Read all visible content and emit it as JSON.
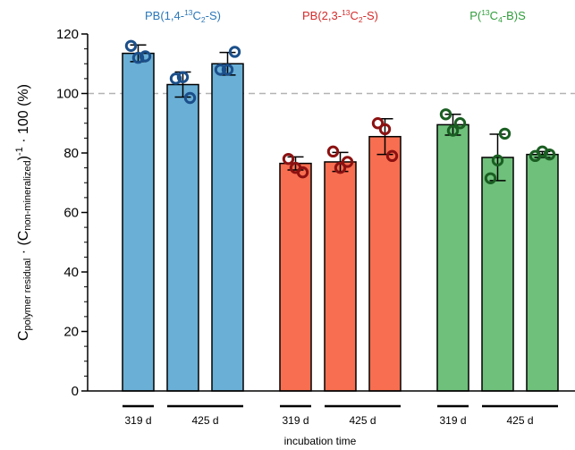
{
  "chart_data": {
    "type": "bar",
    "ylabel": {
      "prefix": "C",
      "sub1": "polymer residual",
      "middle": " · (C",
      "sub2": "non-mineralized",
      "close": ")",
      "sup": "-1",
      "suffix": " · 100 (%)"
    },
    "xlabel": "incubation time",
    "ylim": [
      0,
      120
    ],
    "yticks": [
      0,
      20,
      40,
      60,
      80,
      100,
      120
    ],
    "yticks_minor_step": 5,
    "reference_line": 100,
    "groups": [
      {
        "title": {
          "pre": "PB(1,4-",
          "sup": "13",
          "mid": "C",
          "sub": "2",
          "post": "-S)"
        },
        "color": "#2a77b8",
        "bar_color": "#6aafd6",
        "marker_color": "#1b4f8a",
        "bars": [
          {
            "time": "319 d",
            "mean": 113.5,
            "sd": 2.8,
            "points": [
              116,
              112,
              112.5
            ]
          },
          {
            "time": "425 d",
            "mean": 103,
            "sd": 4.2,
            "points": [
              105,
              105.5,
              98.5
            ]
          },
          {
            "time": "425 d",
            "mean": 110,
            "sd": 3.8,
            "points": [
              108,
              108,
              114
            ]
          }
        ],
        "time_labels": [
          "319 d",
          "425 d"
        ]
      },
      {
        "title": {
          "pre": "PB(2,3-",
          "sup": "13",
          "mid": "C",
          "sub": "2",
          "post": "-S)"
        },
        "color": "#d42a2a",
        "bar_color": "#f76e50",
        "marker_color": "#8c1111",
        "bars": [
          {
            "time": "319 d",
            "mean": 76.5,
            "sd": 2.2,
            "points": [
              78,
              75,
              73.5
            ]
          },
          {
            "time": "425 d",
            "mean": 77,
            "sd": 3.2,
            "points": [
              80.5,
              75,
              77
            ]
          },
          {
            "time": "425 d",
            "mean": 85.5,
            "sd": 6,
            "points": [
              90,
              88,
              79
            ]
          }
        ],
        "time_labels": [
          "319 d",
          "425 d"
        ]
      },
      {
        "title": {
          "pre": "P(",
          "sup": "13",
          "mid": "C",
          "sub": "4",
          "post": "-B)S"
        },
        "color": "#2e9d3a",
        "bar_color": "#6ec07a",
        "marker_color": "#1a5e22",
        "bars": [
          {
            "time": "319 d",
            "mean": 89.5,
            "sd": 3.5,
            "points": [
              93,
              87.5,
              90
            ]
          },
          {
            "time": "425 d",
            "mean": 78.5,
            "sd": 7.8,
            "points": [
              71.5,
              77.5,
              86.5
            ]
          },
          {
            "time": "425 d",
            "mean": 79.5,
            "sd": 1.0,
            "points": [
              79,
              80.5,
              79.5
            ]
          }
        ],
        "time_labels": [
          "319 d",
          "425 d"
        ]
      }
    ]
  }
}
